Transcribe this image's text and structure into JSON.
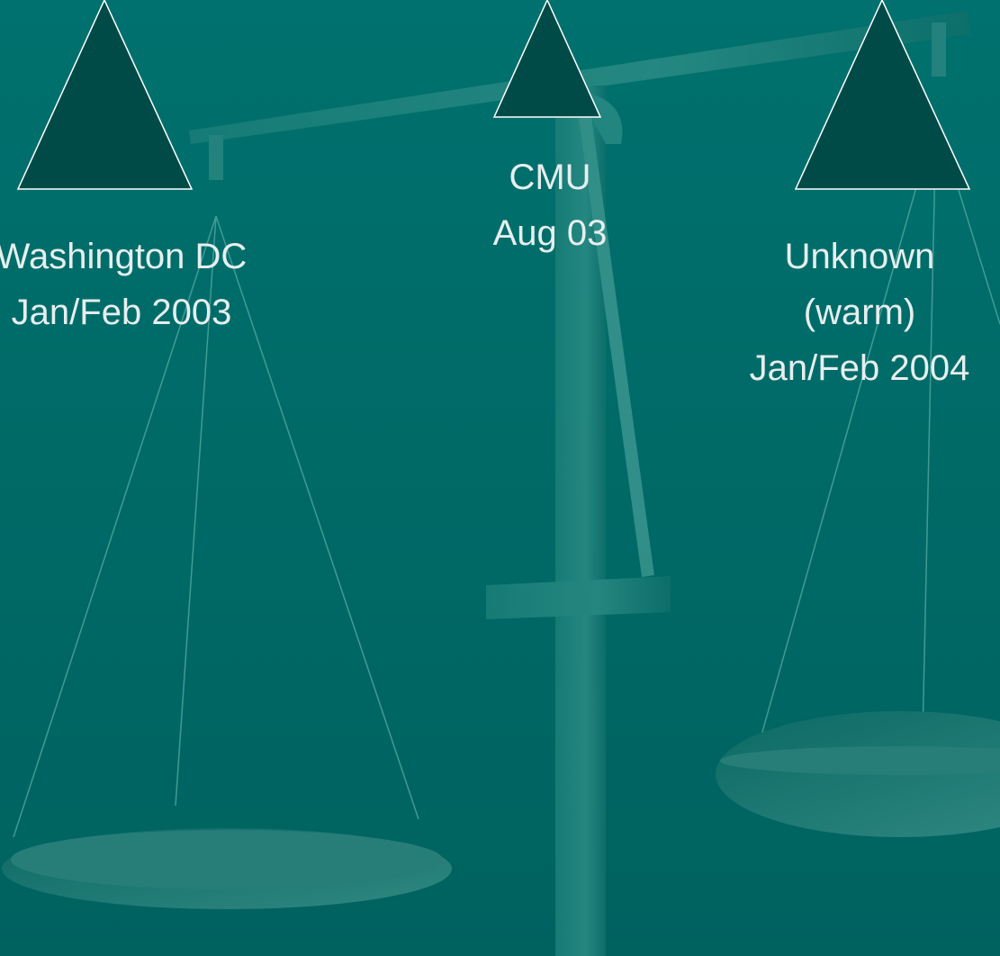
{
  "labels": [
    {
      "lines": [
        "Washington DC",
        "Jan/Feb 2003"
      ]
    },
    {
      "lines": [
        "CMU",
        "Aug 03"
      ]
    },
    {
      "lines": [
        "Unknown",
        "(warm)",
        "Jan/Feb 2004"
      ]
    }
  ]
}
